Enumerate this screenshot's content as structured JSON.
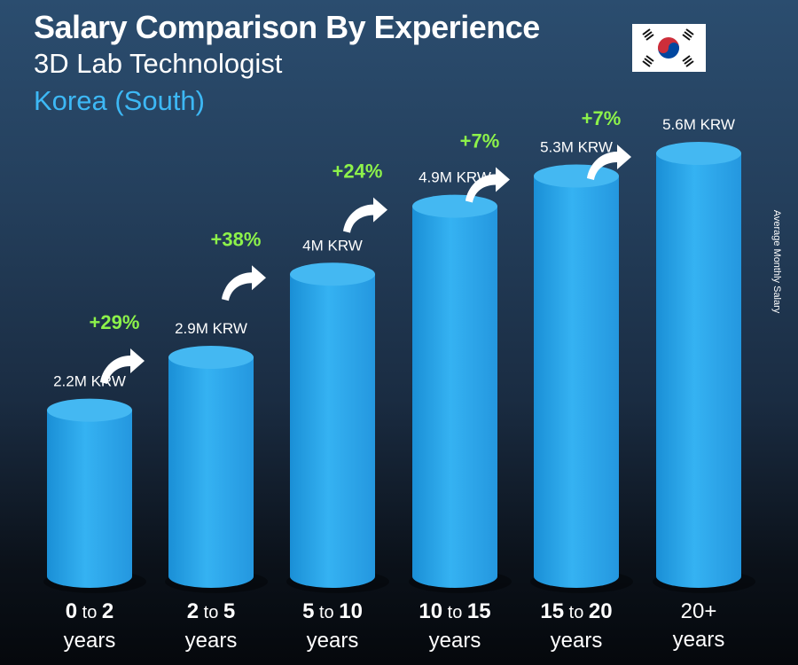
{
  "header": {
    "title": "Salary Comparison By Experience",
    "subtitle": "3D Lab Technologist",
    "location": "Korea (South)"
  },
  "side_label": "Average Monthly Salary",
  "flag_icon": "south-korea-flag-icon",
  "colors": {
    "bar": "#29a6ea",
    "bar_top": "#44b8f2",
    "increase_text": "#8df24a",
    "location_text": "#3db8f5"
  },
  "chart_data": {
    "type": "bar",
    "title": "Salary Comparison By Experience",
    "ylabel": "Average Monthly Salary",
    "ylim": [
      0,
      6.0
    ],
    "categories": [
      {
        "from": "0",
        "to": "2",
        "word": "to",
        "unit": "years"
      },
      {
        "from": "2",
        "to": "5",
        "word": "to",
        "unit": "years"
      },
      {
        "from": "5",
        "to": "10",
        "word": "to",
        "unit": "years"
      },
      {
        "from": "10",
        "to": "15",
        "word": "to",
        "unit": "years"
      },
      {
        "from": "15",
        "to": "20",
        "word": "to",
        "unit": "years"
      },
      {
        "from": "20+",
        "to": "",
        "word": "",
        "unit": "years"
      }
    ],
    "values": [
      2.2,
      2.9,
      4.0,
      4.9,
      5.3,
      5.6
    ],
    "value_labels": [
      "2.2M KRW",
      "2.9M KRW",
      "4M KRW",
      "4.9M KRW",
      "5.3M KRW",
      "5.6M KRW"
    ],
    "increases": [
      "+29%",
      "+38%",
      "+24%",
      "+7%",
      "+7%"
    ]
  }
}
